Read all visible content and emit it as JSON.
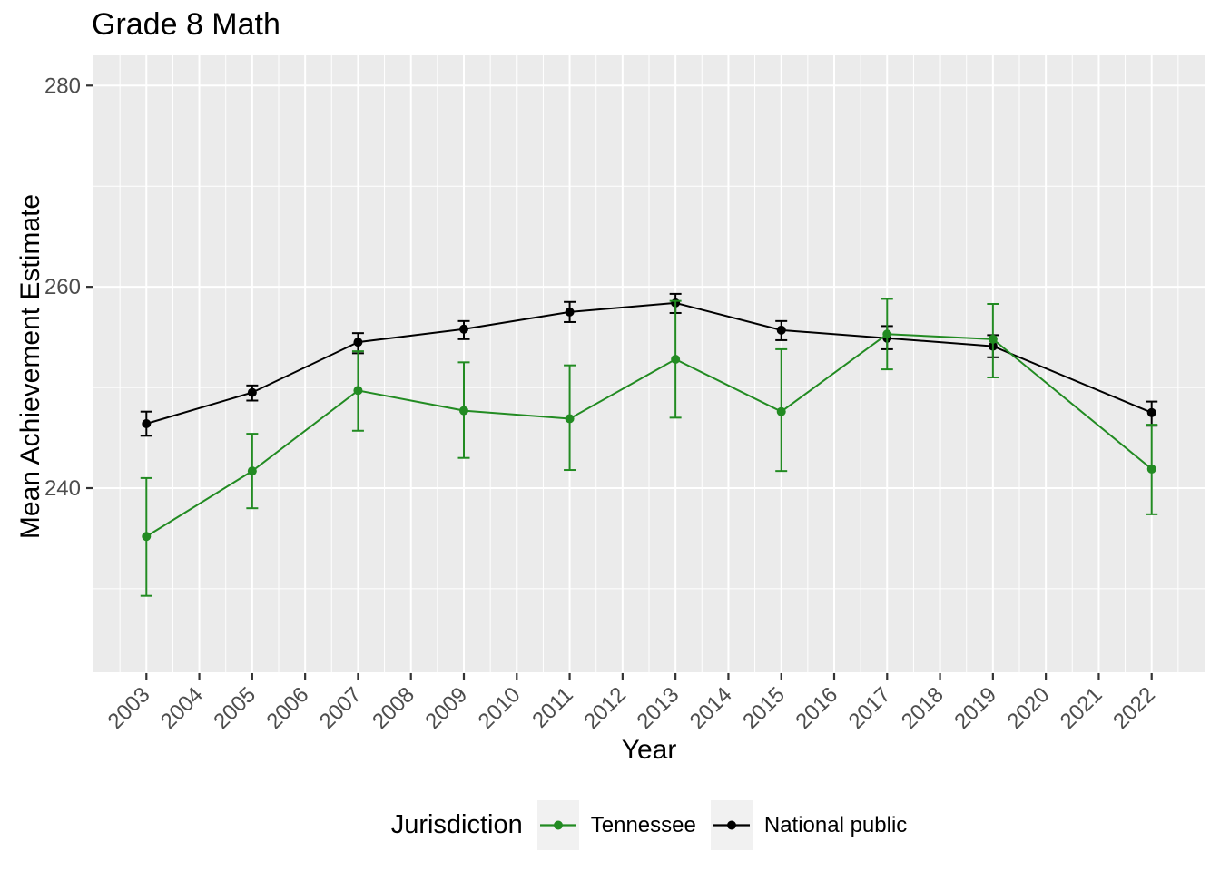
{
  "chart_data": {
    "type": "line",
    "title": "Grade 8 Math",
    "xlabel": "Year",
    "ylabel": "Mean Achievement Estimate",
    "legend_title": "Jurisdiction",
    "legend_position": "bottom",
    "grid": true,
    "panel_bg": "#EBEBEB",
    "grid_color": "#FFFFFF",
    "tick_color": "#333333",
    "tick_label_color": "#4D4D4D",
    "xlim": [
      2002,
      2023
    ],
    "ylim": [
      221.7,
      283.0
    ],
    "x_ticks": [
      2003,
      2004,
      2005,
      2006,
      2007,
      2008,
      2009,
      2010,
      2011,
      2012,
      2013,
      2014,
      2015,
      2016,
      2017,
      2018,
      2019,
      2020,
      2021,
      2022
    ],
    "y_ticks": [
      240,
      260,
      280
    ],
    "y_minor_ticks": [
      230,
      250,
      270
    ],
    "series": [
      {
        "name": "Tennessee",
        "color": "#228B22",
        "x": [
          2003,
          2005,
          2007,
          2009,
          2011,
          2013,
          2015,
          2017,
          2019,
          2022
        ],
        "values": [
          235.2,
          241.7,
          249.7,
          247.7,
          246.9,
          252.8,
          247.6,
          255.3,
          254.8,
          241.9
        ],
        "ci_low": [
          229.3,
          238.0,
          245.7,
          243.0,
          241.8,
          247.0,
          241.7,
          251.8,
          251.0,
          237.4
        ],
        "ci_high": [
          241.0,
          245.4,
          253.6,
          252.5,
          252.2,
          258.6,
          253.8,
          258.8,
          258.3,
          246.3
        ]
      },
      {
        "name": "National public",
        "color": "#000000",
        "x": [
          2003,
          2005,
          2007,
          2009,
          2011,
          2013,
          2015,
          2017,
          2019,
          2022
        ],
        "values": [
          246.4,
          249.5,
          254.5,
          255.8,
          257.5,
          258.4,
          255.7,
          254.9,
          254.1,
          247.5
        ],
        "ci_low": [
          245.2,
          248.7,
          253.4,
          254.8,
          256.5,
          257.4,
          254.7,
          253.8,
          253.0,
          246.2
        ],
        "ci_high": [
          247.6,
          250.2,
          255.4,
          256.6,
          258.5,
          259.3,
          256.6,
          256.1,
          255.2,
          248.6
        ]
      }
    ]
  }
}
